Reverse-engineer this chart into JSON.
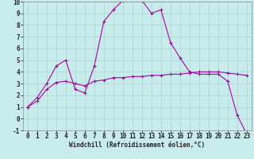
{
  "xlabel": "Windchill (Refroidissement éolien,°C)",
  "background_color": "#c8ecec",
  "grid_color": "#b0d8d8",
  "line_color": "#aa00aa",
  "line1_x": [
    0,
    1,
    2,
    3,
    4,
    5,
    6,
    7,
    8,
    9,
    10,
    11,
    12,
    13,
    14,
    15,
    16,
    17,
    18,
    19,
    20,
    21,
    22,
    23
  ],
  "line1_y": [
    1.0,
    1.8,
    3.0,
    4.5,
    5.0,
    2.5,
    2.2,
    4.5,
    8.3,
    9.3,
    10.1,
    10.2,
    10.1,
    9.0,
    9.3,
    6.5,
    5.2,
    4.0,
    3.8,
    3.8,
    3.8,
    3.2,
    0.3,
    -1.3
  ],
  "line2_x": [
    0,
    1,
    2,
    3,
    4,
    5,
    6,
    7,
    8,
    9,
    10,
    11,
    12,
    13,
    14,
    15,
    16,
    17,
    18,
    19,
    20,
    21,
    22,
    23
  ],
  "line2_y": [
    1.0,
    1.5,
    2.5,
    3.1,
    3.2,
    3.0,
    2.8,
    3.2,
    3.3,
    3.5,
    3.5,
    3.6,
    3.6,
    3.7,
    3.7,
    3.8,
    3.8,
    3.9,
    4.0,
    4.0,
    4.0,
    3.9,
    3.8,
    3.7
  ],
  "ylim": [
    -1,
    10
  ],
  "xlim": [
    -0.5,
    23.5
  ],
  "yticks": [
    -1,
    0,
    1,
    2,
    3,
    4,
    5,
    6,
    7,
    8,
    9,
    10
  ],
  "xticks": [
    0,
    1,
    2,
    3,
    4,
    5,
    6,
    7,
    8,
    9,
    10,
    11,
    12,
    13,
    14,
    15,
    16,
    17,
    18,
    19,
    20,
    21,
    22,
    23
  ],
  "tick_fontsize": 5.5,
  "xlabel_fontsize": 5.5
}
